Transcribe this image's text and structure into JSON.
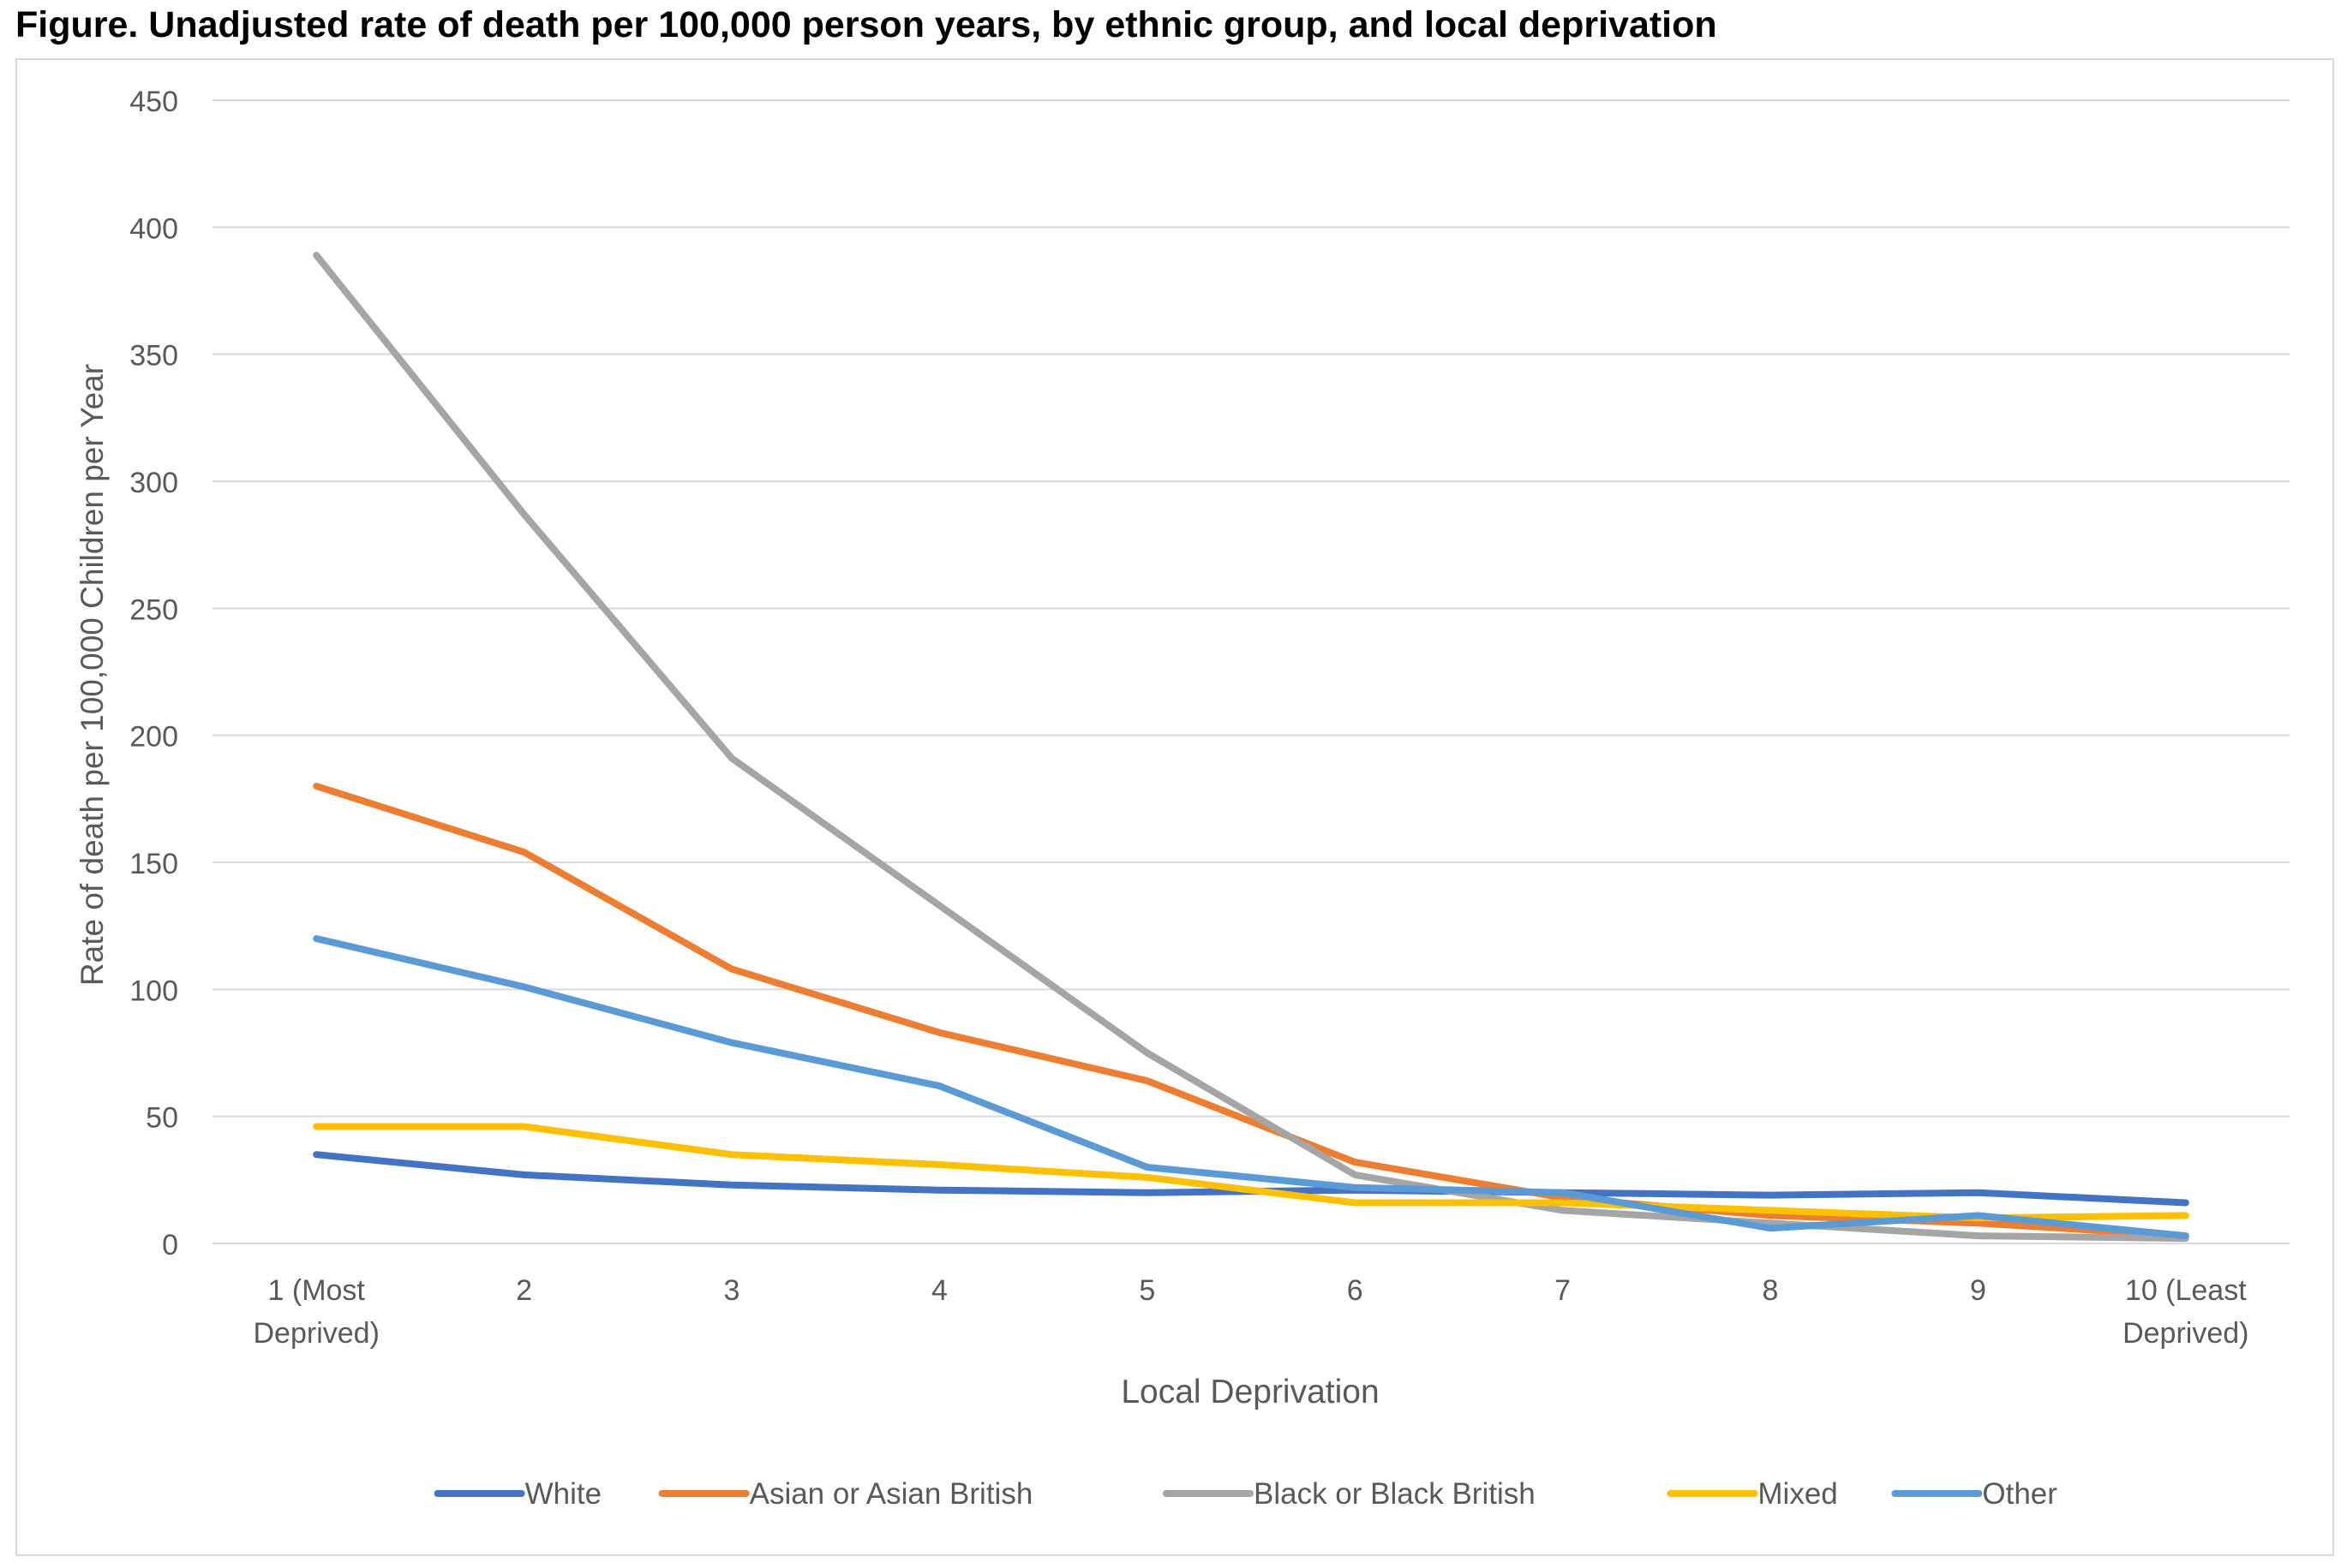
{
  "figure": {
    "title": "Figure. Unadjusted rate of death per 100,000 person years, by ethnic group, and local deprivation"
  },
  "chart_data": {
    "type": "line",
    "title": "",
    "xlabel": "Local Deprivation",
    "ylabel": "Rate of death per 100,000 Children per Year",
    "categories": [
      [
        "1 (Most",
        "Deprived)"
      ],
      [
        "2"
      ],
      [
        "3"
      ],
      [
        "4"
      ],
      [
        "5"
      ],
      [
        "6"
      ],
      [
        "7"
      ],
      [
        "8"
      ],
      [
        "9"
      ],
      [
        "10 (Least",
        "Deprived)"
      ]
    ],
    "ylim": [
      0,
      450
    ],
    "yticks": [
      0,
      50,
      100,
      150,
      200,
      250,
      300,
      350,
      400,
      450
    ],
    "grid": true,
    "legend": "bottom",
    "series": [
      {
        "name": "White",
        "color": "#4472C4",
        "values": [
          35,
          27,
          23,
          21,
          20,
          21,
          20,
          19,
          20,
          16
        ]
      },
      {
        "name": "Asian or Asian British",
        "color": "#ED7D31",
        "values": [
          180,
          154,
          108,
          83,
          64,
          32,
          18,
          11,
          8,
          3
        ]
      },
      {
        "name": "Black or Black British",
        "color": "#A5A5A5",
        "values": [
          389,
          287,
          191,
          133,
          75,
          27,
          13,
          8,
          3,
          2
        ]
      },
      {
        "name": "Mixed",
        "color": "#FFC000",
        "values": [
          46,
          46,
          35,
          31,
          26,
          16,
          16,
          13,
          10,
          11
        ]
      },
      {
        "name": "Other",
        "color": "#5B9BD5",
        "values": [
          120,
          101,
          79,
          62,
          30,
          22,
          20,
          6,
          11,
          3
        ]
      }
    ]
  }
}
